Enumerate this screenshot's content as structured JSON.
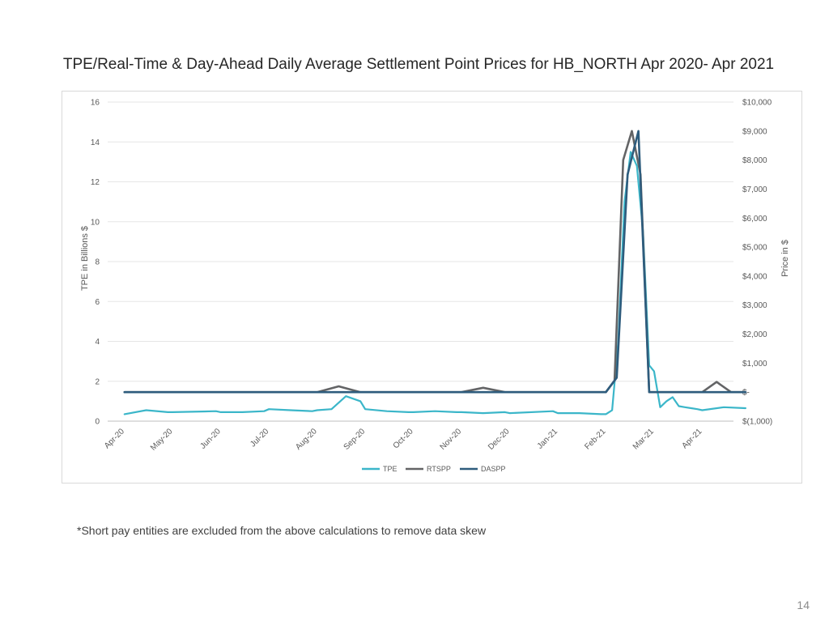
{
  "slide": {
    "title": "TPE/Real-Time & Day-Ahead Daily Average Settlement Point Prices for HB_NORTH Apr 2020- Apr 2021",
    "footnote": "*Short pay entities are excluded from the above calculations to remove data skew",
    "page_number": "14"
  },
  "chart_data": {
    "type": "line",
    "title": "",
    "grid": true,
    "legend_position": "bottom",
    "x_axis": {
      "tick_labels": [
        "Apr-20",
        "May-20",
        "Jun-20",
        "Jul-20",
        "Aug-20",
        "Sep-20",
        "Oct-20",
        "Nov-20",
        "Dec-20",
        "Jan-21",
        "Feb-21",
        "Mar-21",
        "Apr-21"
      ]
    },
    "y_left": {
      "label": "TPE in Billions $",
      "range": [
        0,
        16
      ],
      "tick_values": [
        0,
        2,
        4,
        6,
        8,
        10,
        12,
        14,
        16
      ],
      "tick_labels": [
        "0",
        "2",
        "4",
        "6",
        "8",
        "10",
        "12",
        "14",
        "16"
      ]
    },
    "y_right": {
      "label": "Price in $",
      "range": [
        -1000,
        10000
      ],
      "tick_values": [
        -1000,
        0,
        1000,
        2000,
        3000,
        4000,
        5000,
        6000,
        7000,
        8000,
        9000,
        10000
      ],
      "tick_labels": [
        "$(1,000)",
        "$-",
        "$1,000",
        "$2,000",
        "$3,000",
        "$4,000",
        "$5,000",
        "$6,000",
        "$7,000",
        "$8,000",
        "$9,000",
        "$10,000"
      ]
    },
    "series": [
      {
        "name": "TPE",
        "axis": "left",
        "color": "#3bb6c9",
        "x": [
          "Apr-20",
          "Apr-20",
          "Apr-20",
          "May-20",
          "May-20",
          "Jun-20",
          "Jun-20",
          "Jun-20",
          "Jul-20",
          "Jul-20",
          "Jul-20",
          "Aug-20",
          "Aug-20",
          "Aug-20",
          "Aug-20",
          "Sep-20",
          "Sep-20",
          "Sep-20",
          "Oct-20",
          "Oct-20",
          "Oct-20",
          "Nov-20",
          "Nov-20",
          "Nov-20",
          "Dec-20",
          "Dec-20",
          "Jan-21",
          "Jan-21",
          "Jan-21",
          "Feb-21",
          "Feb-21",
          "Feb-21",
          "Feb-21",
          "Feb-21",
          "Feb-21",
          "Feb-21",
          "Feb-21",
          "Mar-21",
          "Mar-21",
          "Mar-21",
          "Mar-21",
          "Mar-21",
          "Mar-21",
          "Mar-21",
          "Mar-21",
          "Apr-21",
          "Apr-21",
          "Apr-21"
        ],
        "y": [
          0.35,
          0.55,
          0.45,
          0.45,
          0.5,
          0.45,
          0.45,
          0.5,
          0.6,
          0.55,
          0.5,
          0.55,
          0.6,
          1.25,
          1.0,
          0.6,
          0.5,
          0.45,
          0.45,
          0.5,
          0.45,
          0.45,
          0.4,
          0.45,
          0.4,
          0.5,
          0.4,
          0.4,
          0.35,
          0.35,
          0.55,
          4.0,
          11.0,
          13.5,
          12.8,
          9.5,
          2.8,
          2.5,
          0.7,
          1.0,
          1.2,
          0.75,
          0.7,
          0.65,
          0.6,
          0.55,
          0.7,
          0.65
        ]
      },
      {
        "name": "RTSPP",
        "axis": "right",
        "color": "#636466",
        "x": [
          "Apr-20",
          "May-20",
          "Jun-20",
          "Jul-20",
          "Aug-20",
          "Aug-20",
          "Aug-20",
          "Sep-20",
          "Oct-20",
          "Nov-20",
          "Nov-20",
          "Nov-20",
          "Dec-20",
          "Jan-21",
          "Feb-21",
          "Feb-21",
          "Feb-21",
          "Feb-21",
          "Feb-21",
          "Feb-21",
          "Mar-21",
          "Apr-21",
          "Apr-21",
          "Apr-21",
          "Apr-21"
        ],
        "y": [
          0,
          0,
          0,
          0,
          0,
          200,
          0,
          0,
          0,
          0,
          150,
          0,
          0,
          0,
          0,
          400,
          8000,
          9000,
          7500,
          0,
          0,
          0,
          350,
          0,
          0
        ]
      },
      {
        "name": "DASPP",
        "axis": "right",
        "color": "#2e5c7d",
        "x": [
          "Apr-20",
          "May-20",
          "Jun-20",
          "Jul-20",
          "Aug-20",
          "Sep-20",
          "Oct-20",
          "Nov-20",
          "Dec-20",
          "Jan-21",
          "Feb-21",
          "Feb-21",
          "Feb-21",
          "Feb-21",
          "Feb-21",
          "Mar-21",
          "Apr-21",
          "Apr-21"
        ],
        "y": [
          0,
          0,
          0,
          0,
          0,
          0,
          0,
          0,
          0,
          0,
          0,
          500,
          7500,
          9000,
          0,
          0,
          0,
          0
        ]
      }
    ]
  }
}
